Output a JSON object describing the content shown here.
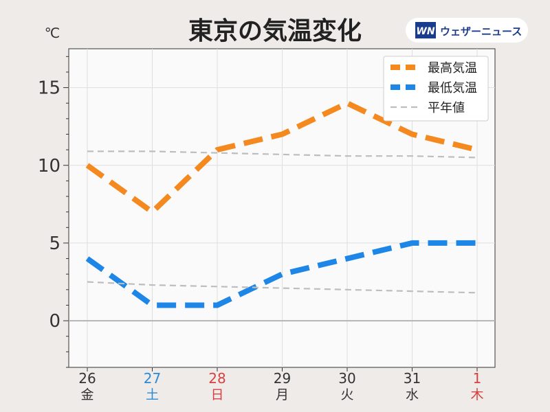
{
  "header": {
    "brand_logo": "WN",
    "brand_name": "ウェザーニュース"
  },
  "chart_data": {
    "type": "line",
    "title": "東京の気温変化",
    "ylabel": "℃",
    "ylim": [
      -3,
      17.5
    ],
    "yticks": [
      0,
      5,
      10,
      15
    ],
    "grid": true,
    "legend_position": "top-right",
    "categories": [
      {
        "day": "26",
        "weekday": "金",
        "color": "#333333"
      },
      {
        "day": "27",
        "weekday": "土",
        "color": "#2a8ad6"
      },
      {
        "day": "28",
        "weekday": "日",
        "color": "#d84040"
      },
      {
        "day": "29",
        "weekday": "月",
        "color": "#333333"
      },
      {
        "day": "30",
        "weekday": "火",
        "color": "#333333"
      },
      {
        "day": "31",
        "weekday": "水",
        "color": "#333333"
      },
      {
        "day": "1",
        "weekday": "木",
        "color": "#d84040"
      }
    ],
    "series": [
      {
        "name": "最高気温",
        "color": "#f4891f",
        "style": "thick-dashed",
        "values": [
          10,
          7,
          11,
          12,
          14,
          12,
          11
        ]
      },
      {
        "name": "最低気温",
        "color": "#1e86e6",
        "style": "thick-dashed",
        "values": [
          4,
          1,
          1,
          3,
          4,
          5,
          5
        ]
      },
      {
        "name": "平年値",
        "color": "#bdbdbd",
        "style": "thin-dashed",
        "values": [
          10.9,
          10.9,
          10.8,
          10.7,
          10.6,
          10.6,
          10.5
        ]
      },
      {
        "name": "",
        "color": "#bdbdbd",
        "style": "thin-dashed",
        "values": [
          2.5,
          2.3,
          2.2,
          2.1,
          2.0,
          1.9,
          1.8
        ]
      }
    ]
  }
}
